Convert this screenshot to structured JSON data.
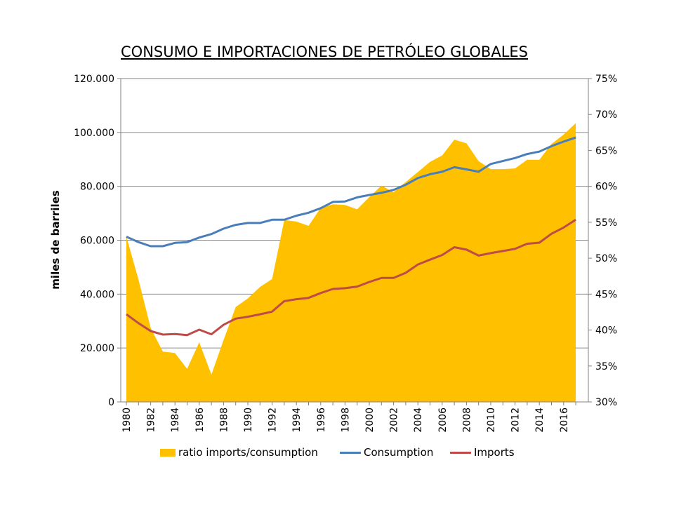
{
  "chart_data": {
    "type": "area+line",
    "title": "CONSUMO E IMPORTACIONES DE PETRÓLEO GLOBALES",
    "ylabel": "miles de barriles",
    "ylim": [
      0,
      120000
    ],
    "y2lim": [
      30,
      75
    ],
    "y_ticks": [
      "0",
      "20.000",
      "40.000",
      "60.000",
      "80.000",
      "100.000",
      "120.000"
    ],
    "y2_ticks": [
      "30%",
      "35%",
      "40%",
      "45%",
      "50%",
      "55%",
      "60%",
      "65%",
      "70%",
      "75%"
    ],
    "x_tick_labels": [
      "1980",
      "1982",
      "1984",
      "1986",
      "1988",
      "1990",
      "1992",
      "1994",
      "1996",
      "1998",
      "2000",
      "2002",
      "2004",
      "2006",
      "2008",
      "2010",
      "2012",
      "2014",
      "2016"
    ],
    "years": [
      1980,
      1981,
      1982,
      1983,
      1984,
      1985,
      1986,
      1987,
      1988,
      1989,
      1990,
      1991,
      1992,
      1993,
      1994,
      1995,
      1996,
      1997,
      1998,
      1999,
      2000,
      2001,
      2002,
      2003,
      2004,
      2005,
      2006,
      2007,
      2008,
      2009,
      2010,
      2011,
      2012,
      2013,
      2014,
      2015,
      2016,
      2017
    ],
    "series": [
      {
        "name": "ratio imports/consumption",
        "axis": "right",
        "kind": "area",
        "color": "#FFC000",
        "values": [
          53.0,
          47.0,
          40.3,
          37.0,
          36.8,
          34.6,
          38.3,
          33.8,
          38.6,
          43.2,
          44.4,
          46.0,
          47.1,
          55.3,
          55.1,
          54.5,
          57.0,
          57.5,
          57.4,
          56.8,
          58.5,
          60.1,
          59.2,
          60.6,
          62.0,
          63.4,
          64.3,
          66.5,
          66.0,
          63.5,
          62.4,
          62.4,
          62.5,
          63.7,
          63.7,
          65.9,
          67.2,
          68.8
        ]
      },
      {
        "name": "Consumption",
        "axis": "left",
        "kind": "line",
        "color": "#4A7EBB",
        "values": [
          61300,
          59300,
          57800,
          57800,
          59000,
          59300,
          61000,
          62300,
          64300,
          65700,
          66400,
          66400,
          67600,
          67600,
          69100,
          70200,
          71900,
          74200,
          74400,
          75900,
          76800,
          77600,
          78700,
          80600,
          83100,
          84500,
          85400,
          87100,
          86300,
          85400,
          88300,
          89400,
          90500,
          92000,
          92900,
          94900,
          96600,
          98100
        ]
      },
      {
        "name": "Imports",
        "axis": "left",
        "kind": "line",
        "color": "#BE4B48",
        "values": [
          32500,
          29200,
          26300,
          25000,
          25200,
          24800,
          26800,
          25100,
          28600,
          30900,
          31600,
          32500,
          33500,
          37400,
          38100,
          38600,
          40400,
          41900,
          42200,
          42800,
          44500,
          46000,
          46000,
          47900,
          51000,
          52800,
          54500,
          57400,
          56500,
          54300,
          55200,
          56000,
          56800,
          58700,
          59100,
          62400,
          64700,
          67600
        ]
      }
    ],
    "legend": [
      "ratio imports/consumption",
      "Consumption",
      "Imports"
    ]
  }
}
